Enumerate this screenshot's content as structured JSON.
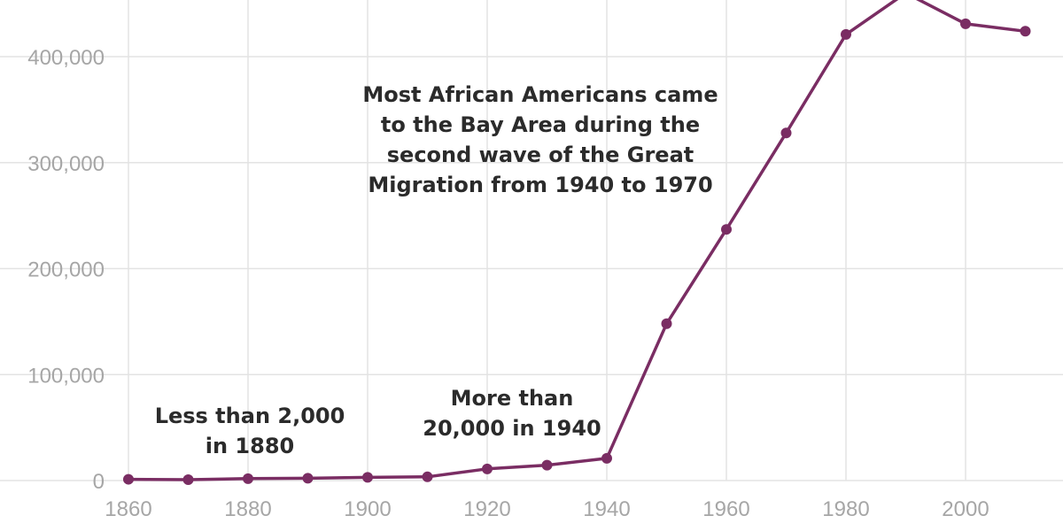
{
  "chart_data": {
    "type": "line",
    "title": "",
    "xlabel": "",
    "ylabel": "",
    "xlim": [
      1860,
      2013
    ],
    "ylim": [
      0,
      450000
    ],
    "grid": true,
    "x_ticks": [
      1860,
      1880,
      1900,
      1920,
      1940,
      1960,
      1980,
      2000
    ],
    "x_tick_labels": [
      "1860",
      "1880",
      "1900",
      "1920",
      "1940",
      "1960",
      "1980",
      "2000"
    ],
    "y_ticks": [
      0,
      100000,
      200000,
      300000,
      400000
    ],
    "y_tick_labels": [
      "0",
      "100,000",
      "200,000",
      "300,000",
      "400,000"
    ],
    "colors": {
      "series": "#7a2d63",
      "grid": "#e3e3e3",
      "tick": "#a6a6a6",
      "annotation": "#2b2b2b"
    },
    "series": [
      {
        "x": [
          1860,
          1870,
          1880,
          1890,
          1900,
          1910,
          1920,
          1930,
          1940,
          1950,
          1960,
          1970,
          1980,
          1990,
          2000,
          2010
        ],
        "values": [
          1200,
          800,
          1800,
          2200,
          3000,
          3500,
          11000,
          14500,
          21000,
          148000,
          237000,
          328000,
          421000,
          460000,
          431000,
          424000
        ]
      }
    ],
    "annotations": [
      {
        "lines": [
          "Most African Americans came",
          "to the Bay Area during the",
          "second wave of the Great",
          "Migration from 1940 to 1970"
        ]
      },
      {
        "lines": [
          "More than",
          "20,000 in 1940"
        ]
      },
      {
        "lines": [
          "Less than 2,000",
          "in 1880"
        ]
      }
    ]
  }
}
